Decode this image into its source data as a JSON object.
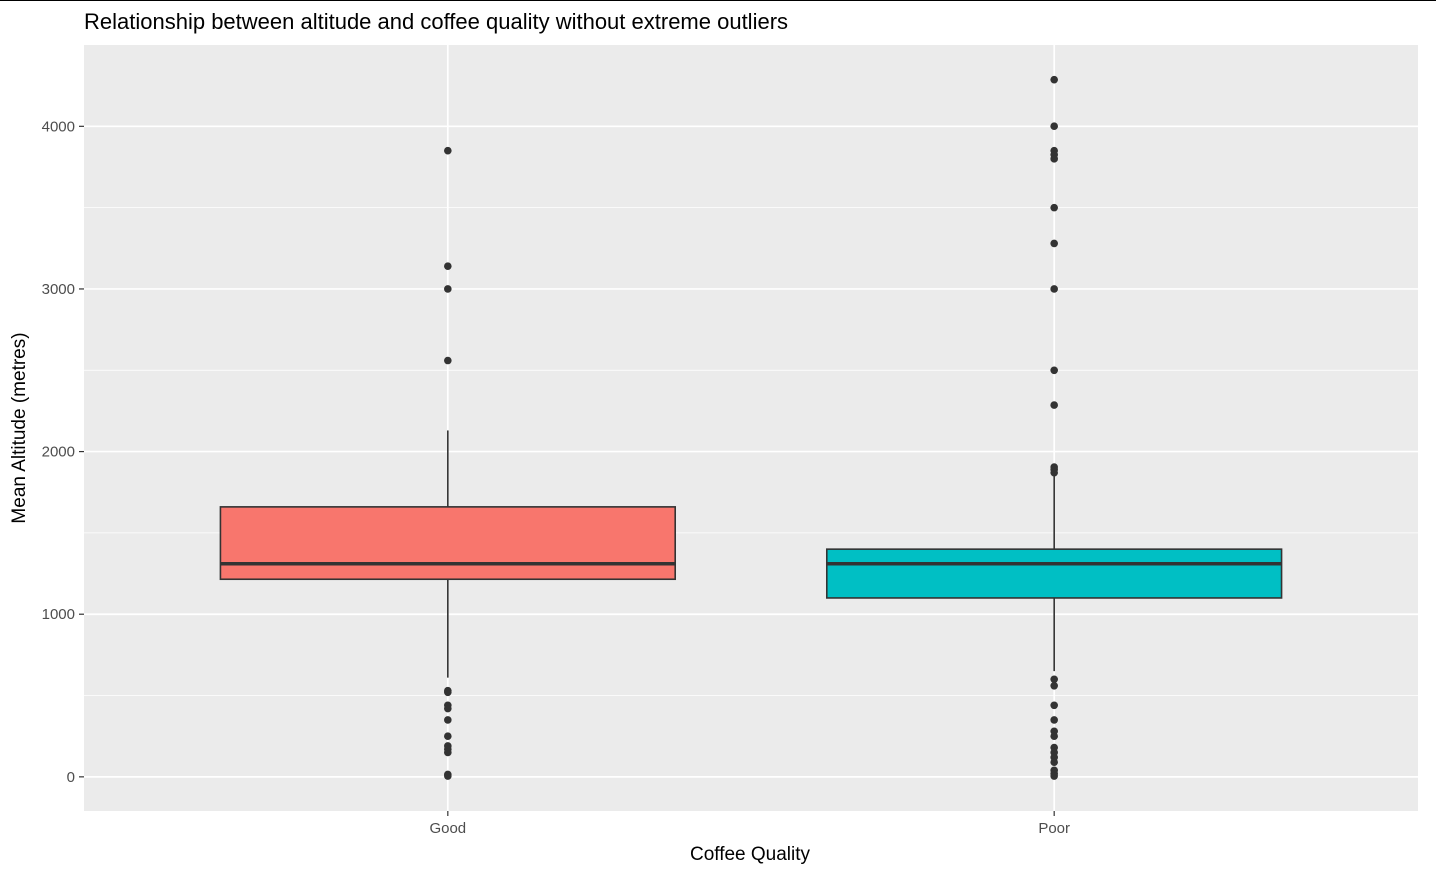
{
  "chart_data": {
    "type": "box",
    "title": "Relationship between altitude and coffee quality without extreme outliers",
    "xlabel": "Coffee Quality",
    "ylabel": "Mean Altitude (metres)",
    "ylim": [
      -210,
      4500
    ],
    "y_ticks": [
      0,
      1000,
      2000,
      3000,
      4000
    ],
    "grid": true,
    "legend": "none",
    "colors": {
      "panel_background": "#ebebeb",
      "grid": "#ffffff",
      "box_outline": "#333333",
      "point": "#333333",
      "tick_text": "#4d4d4d"
    },
    "categories": [
      "Good",
      "Poor"
    ],
    "series": [
      {
        "category": "Good",
        "fill": "#f8766d",
        "whisker_low": 610,
        "q1": 1215,
        "median": 1310,
        "q3": 1660,
        "whisker_high": 2130,
        "outliers": [
          3850,
          3140,
          3000,
          2560,
          530,
          520,
          440,
          420,
          350,
          250,
          190,
          170,
          150,
          15,
          5
        ]
      },
      {
        "category": "Poor",
        "fill": "#00bfc4",
        "whisker_low": 650,
        "q1": 1100,
        "median": 1310,
        "q3": 1400,
        "whisker_high": 1870,
        "outliers": [
          4287,
          4001,
          3850,
          3825,
          3800,
          3500,
          3280,
          3000,
          2500,
          2286,
          1905,
          1890,
          1870,
          600,
          560,
          440,
          350,
          280,
          250,
          180,
          150,
          120,
          90,
          40,
          20,
          5
        ]
      }
    ]
  }
}
